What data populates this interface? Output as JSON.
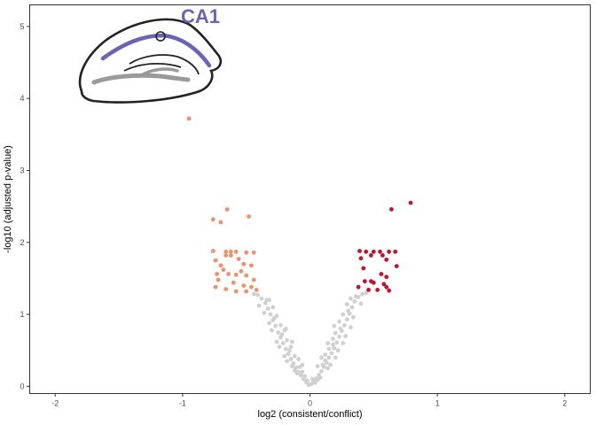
{
  "chart_data": {
    "type": "scatter",
    "title": "",
    "xlabel": "log2 (consistent/conflict)",
    "ylabel": "-log10 (adjusted p-value)",
    "xlim": [
      -2.2,
      2.2
    ],
    "ylim": [
      -0.1,
      5.3
    ],
    "xticks": [
      -2,
      -1,
      0,
      1,
      2
    ],
    "yticks": [
      0,
      1,
      2,
      3,
      4,
      5
    ],
    "grid": false,
    "inset_label": "CA1",
    "colors": {
      "non_significant": "#d0d0d0",
      "down": "#f0906a",
      "up": "#c0142e",
      "inset_accent": "#6b63b5",
      "inset_gray": "#9a9a9a"
    },
    "series": [
      {
        "values_group": "non_significant",
        "points": [
          [
            -0.01,
            0.02
          ],
          [
            0.01,
            0.03
          ],
          [
            -0.03,
            0.06
          ],
          [
            0.03,
            0.07
          ],
          [
            -0.05,
            0.1
          ],
          [
            0.05,
            0.11
          ],
          [
            -0.07,
            0.15
          ],
          [
            0.07,
            0.16
          ],
          [
            -0.09,
            0.2
          ],
          [
            0.09,
            0.21
          ],
          [
            -0.11,
            0.26
          ],
          [
            0.11,
            0.27
          ],
          [
            -0.13,
            0.32
          ],
          [
            0.13,
            0.33
          ],
          [
            -0.15,
            0.38
          ],
          [
            0.15,
            0.4
          ],
          [
            -0.17,
            0.45
          ],
          [
            0.17,
            0.46
          ],
          [
            -0.19,
            0.52
          ],
          [
            0.19,
            0.53
          ],
          [
            -0.21,
            0.6
          ],
          [
            0.21,
            0.61
          ],
          [
            -0.23,
            0.68
          ],
          [
            0.23,
            0.69
          ],
          [
            -0.25,
            0.75
          ],
          [
            0.25,
            0.77
          ],
          [
            -0.27,
            0.84
          ],
          [
            0.27,
            0.85
          ],
          [
            -0.29,
            0.92
          ],
          [
            0.29,
            0.93
          ],
          [
            -0.31,
            1.0
          ],
          [
            0.31,
            1.01
          ],
          [
            -0.33,
            1.08
          ],
          [
            0.33,
            1.1
          ],
          [
            -0.35,
            1.16
          ],
          [
            0.35,
            1.18
          ],
          [
            -0.38,
            1.22
          ],
          [
            0.38,
            1.24
          ],
          [
            -0.41,
            1.27
          ],
          [
            0.41,
            1.28
          ],
          [
            -0.02,
            0.08
          ],
          [
            0.02,
            0.1
          ],
          [
            -0.04,
            0.14
          ],
          [
            0.04,
            0.05
          ],
          [
            -0.06,
            0.2
          ],
          [
            0.06,
            0.09
          ],
          [
            -0.08,
            0.27
          ],
          [
            0.08,
            0.12
          ],
          [
            -0.1,
            0.18
          ],
          [
            0.1,
            0.3
          ],
          [
            -0.12,
            0.22
          ],
          [
            0.12,
            0.36
          ],
          [
            -0.14,
            0.28
          ],
          [
            0.14,
            0.25
          ],
          [
            -0.16,
            0.5
          ],
          [
            0.16,
            0.3
          ],
          [
            -0.18,
            0.35
          ],
          [
            0.18,
            0.58
          ],
          [
            -0.2,
            0.42
          ],
          [
            0.2,
            0.4
          ],
          [
            -0.22,
            0.72
          ],
          [
            0.22,
            0.5
          ],
          [
            -0.24,
            0.55
          ],
          [
            0.24,
            0.8
          ],
          [
            -0.26,
            0.62
          ],
          [
            0.26,
            0.6
          ],
          [
            -0.28,
            0.95
          ],
          [
            0.28,
            0.7
          ],
          [
            -0.3,
            0.78
          ],
          [
            0.3,
            1.05
          ],
          [
            -0.32,
            0.88
          ],
          [
            0.32,
            0.82
          ],
          [
            -0.34,
            1.2
          ],
          [
            0.34,
            0.96
          ],
          [
            -0.36,
            1.02
          ],
          [
            0.36,
            1.25
          ],
          [
            -0.4,
            1.12
          ],
          [
            0.4,
            1.15
          ],
          [
            -0.44,
            1.28
          ],
          [
            0.44,
            1.3
          ],
          [
            -0.12,
            0.42
          ],
          [
            0.12,
            0.44
          ],
          [
            -0.15,
            0.55
          ],
          [
            0.15,
            0.52
          ],
          [
            -0.18,
            0.64
          ],
          [
            0.18,
            0.66
          ],
          [
            -0.2,
            0.78
          ],
          [
            0.2,
            0.74
          ],
          [
            -0.23,
            0.85
          ],
          [
            0.23,
            0.9
          ],
          [
            -0.26,
            0.98
          ],
          [
            0.26,
            1.0
          ],
          [
            -0.29,
            1.1
          ],
          [
            0.29,
            1.14
          ],
          [
            -0.32,
            1.2
          ],
          [
            0.32,
            1.22
          ],
          [
            -0.06,
            0.3
          ],
          [
            0.06,
            0.28
          ],
          [
            -0.09,
            0.38
          ],
          [
            0.09,
            0.4
          ],
          [
            -0.14,
            0.62
          ],
          [
            0.14,
            0.6
          ],
          [
            -0.19,
            0.8
          ],
          [
            0.19,
            0.84
          ]
        ]
      },
      {
        "values_group": "down",
        "points": [
          [
            -0.95,
            3.72
          ],
          [
            -0.65,
            2.46
          ],
          [
            -0.76,
            2.32
          ],
          [
            -0.7,
            2.28
          ],
          [
            -0.48,
            2.36
          ],
          [
            -0.76,
            1.88
          ],
          [
            -0.66,
            1.87
          ],
          [
            -0.62,
            1.87
          ],
          [
            -0.58,
            1.87
          ],
          [
            -0.5,
            1.86
          ],
          [
            -0.44,
            1.86
          ],
          [
            -0.66,
            1.82
          ],
          [
            -0.62,
            1.82
          ],
          [
            -0.74,
            1.75
          ],
          [
            -0.56,
            1.77
          ],
          [
            -0.7,
            1.68
          ],
          [
            -0.52,
            1.7
          ],
          [
            -0.46,
            1.68
          ],
          [
            -0.68,
            1.62
          ],
          [
            -0.54,
            1.6
          ],
          [
            -0.73,
            1.56
          ],
          [
            -0.64,
            1.56
          ],
          [
            -0.58,
            1.55
          ],
          [
            -0.5,
            1.54
          ],
          [
            -0.72,
            1.48
          ],
          [
            -0.44,
            1.48
          ],
          [
            -0.6,
            1.44
          ],
          [
            -0.52,
            1.4
          ],
          [
            -0.46,
            1.38
          ],
          [
            -0.74,
            1.38
          ],
          [
            -0.66,
            1.35
          ],
          [
            -0.58,
            1.32
          ],
          [
            -0.5,
            1.32
          ],
          [
            -0.42,
            1.34
          ]
        ]
      },
      {
        "values_group": "up",
        "points": [
          [
            0.79,
            2.55
          ],
          [
            0.64,
            2.46
          ],
          [
            0.39,
            1.88
          ],
          [
            0.44,
            1.87
          ],
          [
            0.5,
            1.87
          ],
          [
            0.55,
            1.87
          ],
          [
            0.62,
            1.87
          ],
          [
            0.67,
            1.87
          ],
          [
            0.48,
            1.82
          ],
          [
            0.57,
            1.82
          ],
          [
            0.4,
            1.78
          ],
          [
            0.6,
            1.76
          ],
          [
            0.68,
            1.67
          ],
          [
            0.42,
            1.64
          ],
          [
            0.56,
            1.56
          ],
          [
            0.6,
            1.52
          ],
          [
            0.43,
            1.46
          ],
          [
            0.48,
            1.46
          ],
          [
            0.5,
            1.44
          ],
          [
            0.58,
            1.42
          ],
          [
            0.6,
            1.38
          ],
          [
            0.38,
            1.38
          ],
          [
            0.46,
            1.34
          ],
          [
            0.53,
            1.34
          ],
          [
            0.62,
            1.33
          ]
        ]
      }
    ]
  }
}
